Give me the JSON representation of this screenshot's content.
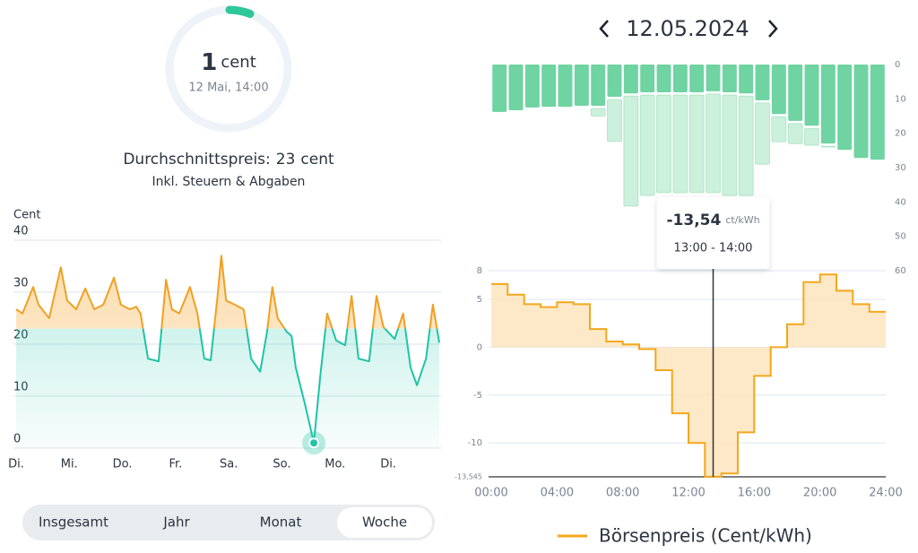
{
  "gauge": {
    "value": 1,
    "unit": "cent",
    "time": "12 Mai, 14:00"
  },
  "average": {
    "label": "Durchschnittspreis:",
    "value": 23,
    "unit": "cent",
    "note": "Inkl. Steuern & Abgaben"
  },
  "tabs": [
    "Insgesamt",
    "Jahr",
    "Monat",
    "Woche"
  ],
  "date": "12.05.2024",
  "chart_data": [
    {
      "type": "line",
      "y_label": "Cent",
      "x": [
        0,
        0.12,
        0.32,
        0.42,
        0.62,
        0.84,
        0.96,
        1.13,
        1.3,
        1.47,
        1.64,
        1.84,
        1.97,
        2.14,
        2.26,
        2.34,
        2.48,
        2.68,
        2.82,
        2.93,
        3.07,
        3.27,
        3.41,
        3.54,
        3.66,
        3.79,
        3.86,
        3.95,
        4.11,
        4.28,
        4.42,
        4.59,
        4.72,
        4.82,
        4.92,
        5.09,
        5.18,
        5.26,
        5.43,
        5.6,
        5.72,
        5.85,
        6.02,
        6.19,
        6.31,
        6.44,
        6.64,
        6.78,
        6.91,
        7.12,
        7.28,
        7.42,
        7.54,
        7.71,
        7.84,
        7.96
      ],
      "values": [
        26.7,
        25.9,
        31,
        27.6,
        25,
        34.8,
        28.4,
        26.7,
        30.7,
        26.7,
        27.6,
        32.8,
        27.6,
        26.7,
        27.2,
        25.9,
        17.2,
        16.7,
        32.4,
        26.7,
        25.9,
        31,
        25.9,
        17.2,
        16.9,
        29.3,
        37,
        28.4,
        27.6,
        26.7,
        17.2,
        14.7,
        22.4,
        31,
        25,
        22.4,
        21.6,
        15.5,
        8.6,
        1,
        13.8,
        25.9,
        20.7,
        19.8,
        29.3,
        17.2,
        16.7,
        29.3,
        23.3,
        21,
        25.9,
        15.5,
        12.1,
        17.2,
        27.6,
        20.3
      ],
      "xlim": [
        0,
        7.96
      ],
      "xticks": [
        {
          "value": 0,
          "label": "Di."
        },
        {
          "value": 1,
          "label": "Mi."
        },
        {
          "value": 2,
          "label": "Do."
        },
        {
          "value": 3,
          "label": "Fr."
        },
        {
          "value": 4,
          "label": "Sa."
        },
        {
          "value": 5,
          "label": "So."
        },
        {
          "value": 6,
          "label": "Mo."
        },
        {
          "value": 7,
          "label": "Di."
        }
      ],
      "ylim": [
        0,
        40
      ],
      "yticks": [
        0,
        10,
        20,
        30,
        40
      ],
      "grid": true,
      "colors": {
        "above": "#f0a023",
        "below": "#1fc4a6"
      }
    },
    {
      "type": "bar",
      "stacked": true,
      "inverted": true,
      "series": [
        {
          "color": "#6fd3a2",
          "values": [
            13.8,
            13.3,
            12.5,
            12.3,
            12.3,
            12,
            12,
            9.4,
            8.4,
            8.1,
            8.1,
            8.1,
            8.1,
            7.8,
            8.1,
            8.4,
            10.4,
            14.4,
            16.4,
            17.8,
            23,
            24.8,
            27.2,
            27.7
          ]
        },
        {
          "color": "#cbf0dc",
          "values": [
            0,
            0,
            0,
            0,
            0,
            0,
            3,
            13,
            32.8,
            30,
            29.2,
            29.2,
            29.2,
            29.5,
            30,
            29.7,
            18.6,
            8.1,
            6.6,
            5.7,
            1,
            0,
            0,
            0
          ]
        }
      ],
      "ylim": [
        0,
        60
      ],
      "yticks": [
        0,
        10,
        20,
        30,
        40,
        50,
        60
      ]
    },
    {
      "type": "step",
      "x": [
        0,
        1,
        2,
        3,
        4,
        5,
        6,
        7,
        8,
        9,
        10,
        11,
        12,
        13,
        14,
        15,
        16,
        17,
        18,
        19,
        20,
        21,
        22,
        23
      ],
      "series": [
        {
          "name": "Börsenpreis (Cent/kWh)",
          "color": "#f2a81d",
          "values": [
            6.6,
            5.5,
            4.5,
            4.2,
            4.7,
            4.5,
            1.9,
            0.6,
            0.3,
            -0.2,
            -2.4,
            -6.9,
            -10,
            -13.54,
            -13.2,
            -8.9,
            -3,
            0,
            2.4,
            6.8,
            7.6,
            5.9,
            4.5,
            3.7
          ]
        }
      ],
      "xlim": [
        0,
        24
      ],
      "xticks": [
        {
          "value": 0,
          "label": "00:00"
        },
        {
          "value": 4,
          "label": "04:00"
        },
        {
          "value": 8,
          "label": "08:00"
        },
        {
          "value": 12,
          "label": "12:00"
        },
        {
          "value": 16,
          "label": "16:00"
        },
        {
          "value": 20,
          "label": "20:00"
        },
        {
          "value": 24,
          "label": "24:00"
        }
      ],
      "ylim": [
        -13.545,
        8
      ],
      "yticks": [
        {
          "value": -13.545,
          "label": "-13,545"
        },
        -10,
        -5,
        0,
        5,
        8
      ],
      "grid": true,
      "tooltip": {
        "value": -13.54,
        "label": "-13,54",
        "unit": "ct/kWh",
        "range": "13:00 - 14:00"
      }
    }
  ]
}
